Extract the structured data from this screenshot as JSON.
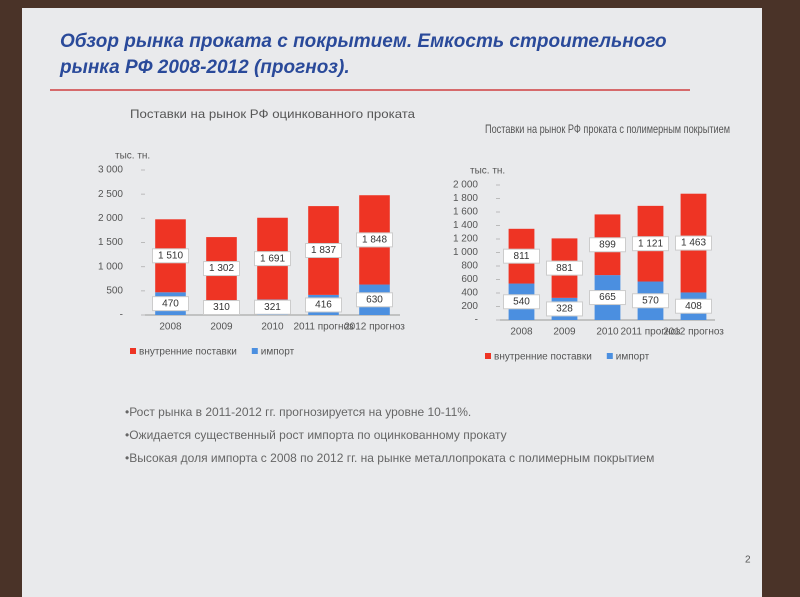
{
  "slide": {
    "title_line1": "Обзор рынка проката с покрытием. Емкость строительного",
    "title_line2": "рынка РФ 2008-2012 (прогноз).",
    "bullets": [
      "•Рост рынка в 2011-2012 гг.  прогнозируется на уровне 10-11%.",
      "•Ожидается существенный рост импорта по оцинкованному прокату",
      "•Высокая доля импорта с 2008 по 2012 гг. на рынке металлопроката с полимерным покрытием"
    ],
    "page_number": "2"
  },
  "chart_data": [
    {
      "type": "stacked_bar",
      "title": "Поставки на рынок РФ оцинкованного проката",
      "y_unit": "тыс. тн.",
      "categories": [
        "2008",
        "2009",
        "2010",
        "2011 прогноз",
        "2012 прогноз"
      ],
      "series": [
        {
          "name": "внутренние поставки",
          "color": "#ee3424",
          "values": [
            1510,
            1302,
            1691,
            1837,
            1848
          ],
          "value_labels": [
            "1 510",
            "1 302",
            "1 691",
            "1 837",
            "1 848"
          ]
        },
        {
          "name": "импорт",
          "color": "#4b8fe0",
          "values": [
            470,
            310,
            321,
            416,
            630
          ]
        }
      ],
      "ylim": [
        0,
        3000
      ],
      "yticks": [
        {
          "value": 0,
          "label": "-"
        },
        500,
        {
          "value": 1000,
          "label": "1 000"
        },
        {
          "value": 1500,
          "label": "1 500"
        },
        {
          "value": 2000,
          "label": "2 000"
        },
        {
          "value": 2500,
          "label": "2 500"
        },
        {
          "value": 3000,
          "label": "3 000"
        }
      ]
    },
    {
      "type": "stacked_bar",
      "title": "Поставки на рынок РФ проката с полимерным покрытием",
      "y_unit": "тыс. тн.",
      "categories": [
        "2008",
        "2009",
        "2010",
        "2011 прогноз",
        "2012 прогноз"
      ],
      "series": [
        {
          "name": "внутренние поставки",
          "color": "#ee3424",
          "values": [
            811,
            881,
            899,
            1121,
            1463
          ],
          "value_labels": [
            "811",
            "881",
            "899",
            "1 121",
            "1 463"
          ]
        },
        {
          "name": "импорт",
          "color": "#4b8fe0",
          "values": [
            540,
            328,
            665,
            570,
            408
          ]
        }
      ],
      "ylim": [
        0,
        2000
      ],
      "yticks": [
        {
          "value": 0,
          "label": "-"
        },
        200,
        400,
        600,
        800,
        {
          "value": 1000,
          "label": "1 000"
        },
        {
          "value": 1200,
          "label": "1 200"
        },
        {
          "value": 1400,
          "label": "1 400"
        },
        {
          "value": 1600,
          "label": "1 600"
        },
        {
          "value": 1800,
          "label": "1 800"
        },
        {
          "value": 2000,
          "label": "2 000"
        }
      ]
    }
  ]
}
